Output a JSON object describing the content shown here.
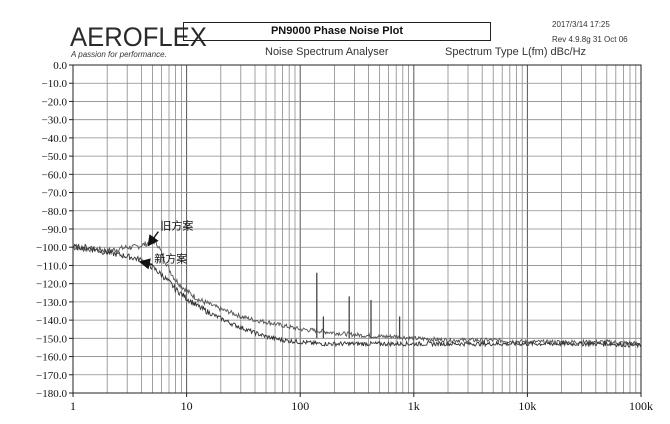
{
  "header": {
    "logo_text": "AEROFLEX",
    "logo_tagline": "A passion for performance.",
    "title": "PN9000  Phase Noise Plot",
    "timestamp": "2017/3/14  17:25",
    "revision": "Rev 4.9.8g  31 Oct 06",
    "subtitle": "Noise Spectrum Analyser",
    "spectrum_type": "Spectrum Type  L(fm) dBc/Hz"
  },
  "chart_data": {
    "type": "line",
    "xscale": "log",
    "xlim": [
      1,
      100000
    ],
    "ylim": [
      -180,
      0
    ],
    "grid": true,
    "y_ticks": [
      0,
      -10,
      -20,
      -30,
      -40,
      -50,
      -60,
      -70,
      -80,
      -90,
      -100,
      -110,
      -120,
      -130,
      -140,
      -150,
      -160,
      -170,
      -180
    ],
    "y_tick_labels": [
      "0.0",
      "−10.0",
      "−20.0",
      "−30.0",
      "−40.0",
      "−50.0",
      "−60.0",
      "−70.0",
      "−80.0",
      "−90.0",
      "−100.0",
      "−110.0",
      "−120.0",
      "−130.0",
      "−140.0",
      "−150.0",
      "−160.0",
      "−170.0",
      "−180.0"
    ],
    "x_ticks": [
      1,
      10,
      100,
      1000,
      10000,
      100000
    ],
    "x_tick_labels": [
      "1",
      "10",
      "100",
      "1k",
      "10k",
      "100k"
    ],
    "series": [
      {
        "name": "旧方案",
        "color": "#555555",
        "x": [
          1,
          1.3,
          1.7,
          2,
          2.5,
          3,
          3.5,
          4,
          4.5,
          5,
          5.5,
          6,
          7,
          8,
          10,
          13,
          17,
          20,
          25,
          30,
          40,
          50,
          70,
          100,
          150,
          200,
          300,
          500,
          700,
          1000,
          2000,
          5000,
          10000,
          20000,
          50000,
          100000
        ],
        "y": [
          -100,
          -101,
          -101,
          -102,
          -101,
          -100,
          -100,
          -99,
          -98,
          -96,
          -98,
          -103,
          -112,
          -118,
          -124,
          -129,
          -132,
          -134,
          -136,
          -138,
          -140,
          -141,
          -143,
          -145,
          -146,
          -147,
          -148,
          -149,
          -149,
          -150,
          -151,
          -151,
          -152,
          -152,
          -152,
          -153
        ]
      },
      {
        "name": "新方案",
        "color": "#333333",
        "x": [
          1,
          1.3,
          1.7,
          2,
          2.5,
          3,
          3.5,
          4,
          4.5,
          5,
          6,
          7,
          8,
          10,
          13,
          17,
          20,
          25,
          30,
          40,
          50,
          70,
          100,
          150,
          200,
          300,
          500,
          700,
          1000,
          2000,
          5000,
          10000,
          20000,
          50000,
          100000
        ],
        "y": [
          -100,
          -100,
          -102,
          -103,
          -104,
          -105,
          -106,
          -107,
          -109,
          -111,
          -115,
          -119,
          -123,
          -128,
          -133,
          -137,
          -139,
          -142,
          -144,
          -147,
          -149,
          -151,
          -152,
          -153,
          -153,
          -153,
          -153,
          -153,
          -153,
          -153,
          -153,
          -153,
          -153,
          -153,
          -154
        ]
      }
    ],
    "spurs": [
      {
        "x": 140,
        "y": -114
      },
      {
        "x": 160,
        "y": -138
      },
      {
        "x": 270,
        "y": -127
      },
      {
        "x": 420,
        "y": -129
      },
      {
        "x": 750,
        "y": -138
      }
    ],
    "annotations": [
      {
        "text": "旧方案",
        "x": 5.2,
        "y": -92
      },
      {
        "text": "新方案",
        "x": 4.6,
        "y": -110
      }
    ]
  }
}
